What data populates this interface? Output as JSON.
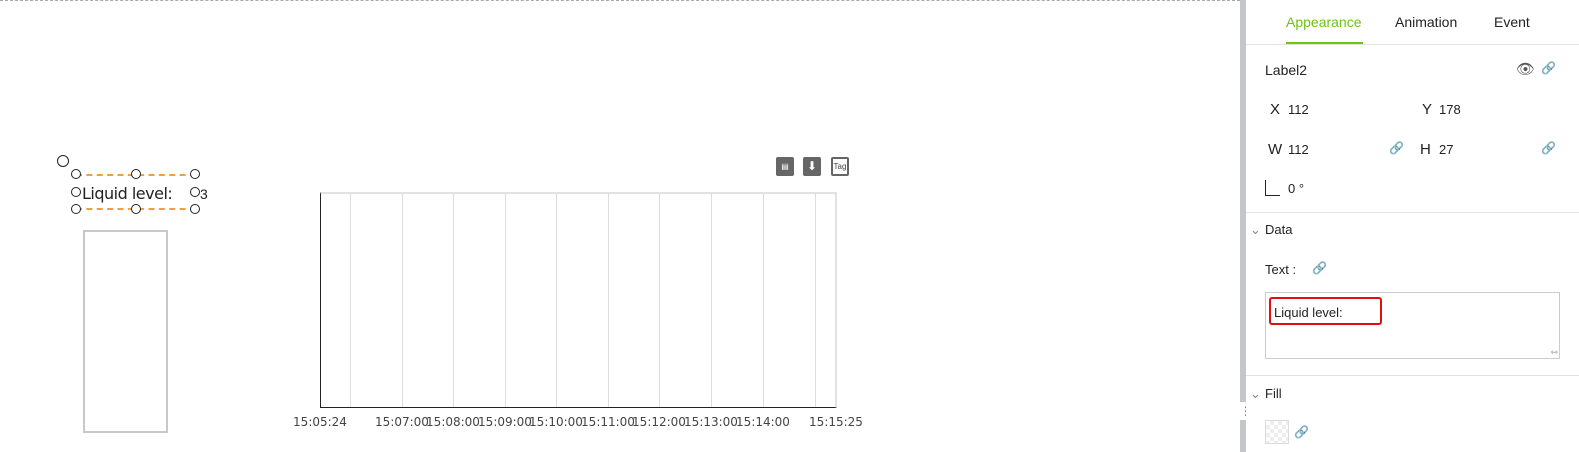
{
  "canvas": {
    "label_widget": {
      "text": "Liquid level:",
      "trailing": "3"
    },
    "chart_widget": {
      "toolbar": [
        "report-search-icon",
        "download-icon",
        "tag-icon"
      ],
      "tag_label": "Tag",
      "x_ticks": [
        "15:05:24",
        "15:07:00",
        "15:08:00",
        "15:09:00",
        "15:10:00",
        "15:11:00",
        "15:12:00",
        "15:13:00",
        "15:14:00",
        "15:15:25"
      ]
    }
  },
  "panel": {
    "tabs": [
      {
        "label": "Appearance",
        "active": true
      },
      {
        "label": "Animation"
      },
      {
        "label": "Event"
      }
    ],
    "accent": "#6cc417",
    "name": "Label2",
    "x_label": "X",
    "x": "112",
    "y_label": "Y",
    "y": "178",
    "w_label": "W",
    "w": "112",
    "h_label": "H",
    "h": "27",
    "rotation": "0 °",
    "data_section": "Data",
    "text_label": "Text :",
    "text_value": "Liquid level:",
    "fill_section": "Fill"
  }
}
